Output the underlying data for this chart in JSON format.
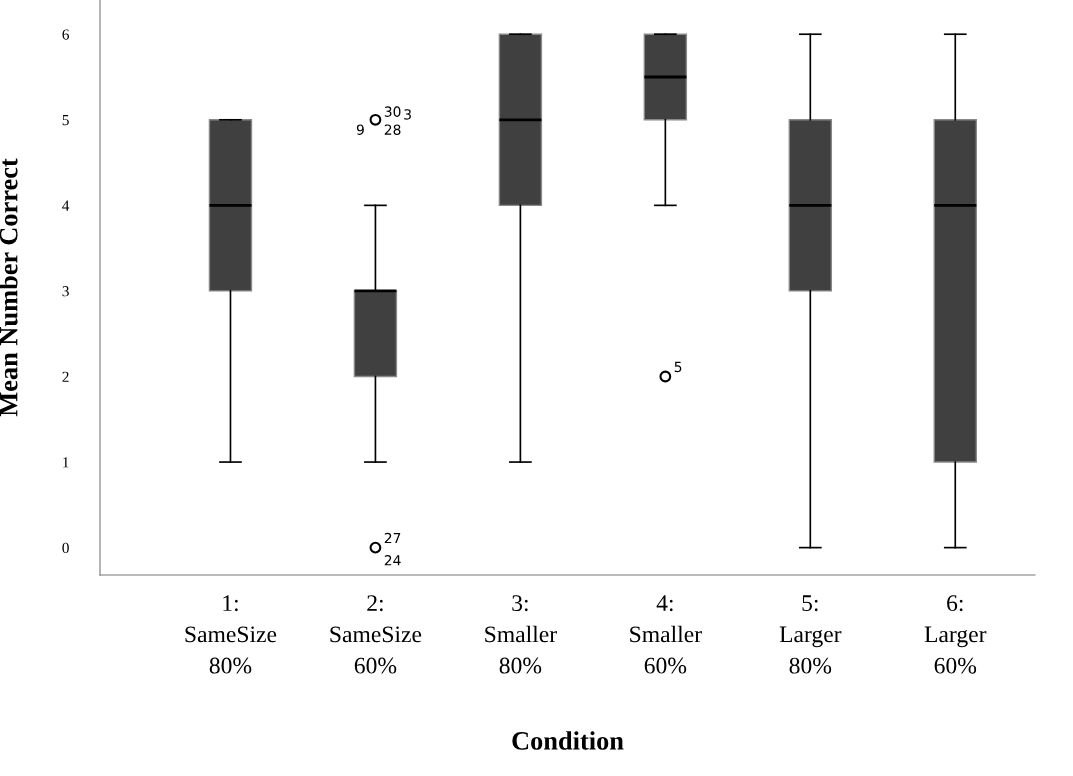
{
  "chart_data": {
    "type": "box",
    "xlabel": "Condition",
    "ylabel": "Mean Number Correct",
    "categories": [
      "1:\nSameSize\n80%",
      "2:\nSameSize\n60%",
      "3:\nSmaller\n80%",
      "4:\nSmaller\n60%",
      "5:\nLarger\n80%",
      "6:\nLarger\n60%"
    ],
    "boxes": [
      {
        "low": 1,
        "q1": 3,
        "median": 4,
        "q3": 5,
        "high": 5
      },
      {
        "low": 1,
        "q1": 2,
        "median": 3,
        "q3": 3,
        "high": 4,
        "outliers": [
          5,
          0
        ]
      },
      {
        "low": 1,
        "q1": 4,
        "median": 5,
        "q3": 6,
        "high": 6
      },
      {
        "low": 4,
        "q1": 5,
        "median": 5.5,
        "q3": 6,
        "high": 6,
        "outliers": [
          2
        ]
      },
      {
        "low": 0,
        "q1": 3,
        "median": 4,
        "q3": 5,
        "high": 6
      },
      {
        "low": 0,
        "q1": 1,
        "median": 4,
        "q3": 5,
        "high": 6
      }
    ],
    "color": "#404040",
    "ylim": [
      -0.32,
      6.4
    ],
    "yticks": [
      0,
      1,
      2,
      3,
      4,
      5,
      6
    ],
    "grid": false,
    "legend": false,
    "annotations": [
      "30",
      "3",
      "9",
      "28",
      "27",
      "24",
      "5"
    ]
  }
}
